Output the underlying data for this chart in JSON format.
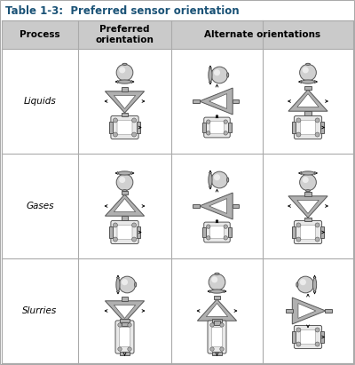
{
  "title": "Table 1-3:  Preferred sensor orientation",
  "title_color": "#1A5276",
  "header_bg": "#CACACA",
  "border_color": "#AAAAAA",
  "col_headers": [
    "Process",
    "Preferred\norientation",
    "Alternate orientations"
  ],
  "row_labels": [
    "Liquids",
    "Gases",
    "Slurries"
  ],
  "font_size_title": 8.5,
  "font_size_header": 7.5,
  "font_size_label": 7.5,
  "fig_width": 4.0,
  "fig_height": 4.11,
  "dpi": 100
}
